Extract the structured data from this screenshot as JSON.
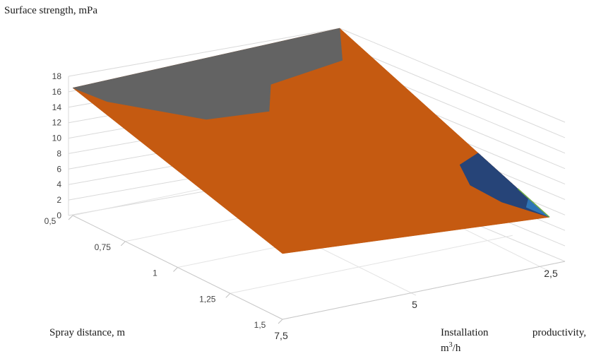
{
  "chart_data": {
    "type": "surface",
    "title": "",
    "zlabel": "Surface strength, mPa",
    "xlabel": "Spray distance, m",
    "ylabel": "Installation productivity, m³/h",
    "ylabel_parts": {
      "word1": "Installation",
      "word2": "productivity,",
      "unit_base": "m",
      "unit_exp": "3",
      "unit_tail": "/h"
    },
    "z_ticks": [
      "0",
      "2",
      "4",
      "6",
      "8",
      "10",
      "12",
      "14",
      "16",
      "18"
    ],
    "x_ticks": [
      "0,5",
      "0,75",
      "1",
      "1,25",
      "1,5"
    ],
    "y_ticks": [
      "7,5",
      "5",
      "2,5"
    ],
    "zlim": [
      0,
      18
    ],
    "grid": true,
    "band_colors": [
      "#5b9bd5",
      "#2e75b6",
      "#264478",
      "#c55a11",
      "#636363"
    ],
    "edge_color": "#70ad47",
    "surface": {
      "x": [
        0.5,
        1.5
      ],
      "y": [
        7.5,
        2.5
      ],
      "z_corners": {
        "x0.5_y7.5": 16.5,
        "x0.5_y2.5": 18,
        "x1.5_y7.5": 8.5,
        "x1.5_y2.5": 7
      }
    }
  }
}
